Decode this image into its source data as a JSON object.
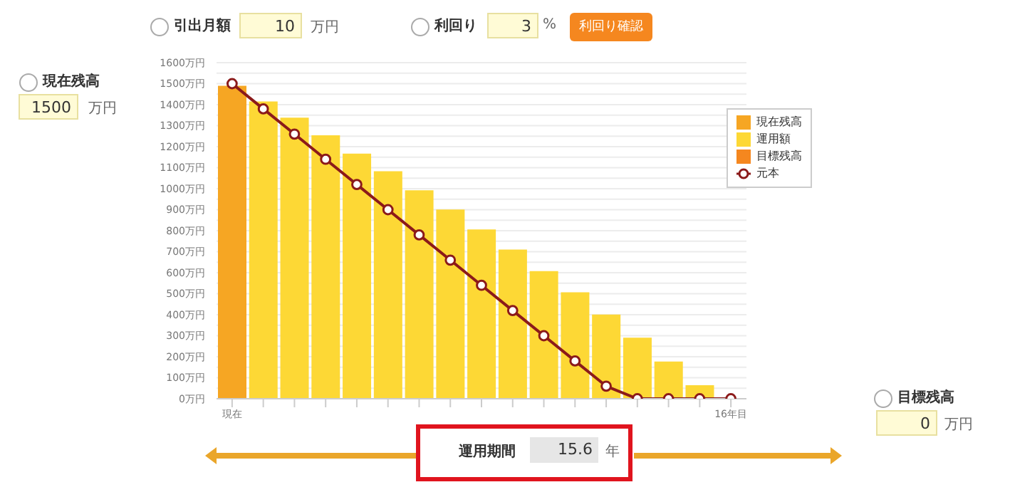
{
  "chart_data": {
    "type": "bar",
    "stacked": true,
    "categories": [
      "現在",
      null,
      null,
      null,
      null,
      null,
      null,
      null,
      null,
      null,
      null,
      null,
      null,
      null,
      null,
      null,
      "16年目"
    ],
    "series": [
      {
        "name": "現在残高",
        "color": "#f6a623",
        "values": [
          1490,
          null,
          null,
          null,
          null,
          null,
          null,
          null,
          null,
          null,
          null,
          null,
          null,
          null,
          null,
          null,
          null
        ]
      },
      {
        "name": "運用額",
        "color": "#fdd835",
        "values": [
          null,
          1415,
          1338,
          1254,
          1167,
          1083,
          992,
          901,
          806,
          710,
          608,
          507,
          401,
          291,
          177,
          64,
          null
        ]
      },
      {
        "name": "目標残高",
        "color": "#f5871f",
        "values": [
          null,
          null,
          null,
          null,
          null,
          null,
          null,
          null,
          null,
          null,
          null,
          null,
          null,
          null,
          null,
          null,
          0
        ]
      },
      {
        "name": "元本",
        "type": "line",
        "color": "#8b1a1a",
        "values": [
          1500,
          1380,
          1260,
          1140,
          1020,
          900,
          780,
          660,
          540,
          420,
          300,
          180,
          60,
          0,
          0,
          0,
          0
        ]
      }
    ],
    "ylim": [
      0,
      1600
    ],
    "yticks": [
      {
        "value": 0,
        "label": "0万円"
      },
      {
        "value": 50,
        "label": null
      },
      {
        "value": 100,
        "label": "100万円"
      },
      {
        "value": 150,
        "label": null
      },
      {
        "value": 200,
        "label": "200万円"
      },
      {
        "value": 250,
        "label": null
      },
      {
        "value": 300,
        "label": "300万円"
      },
      {
        "value": 350,
        "label": null
      },
      {
        "value": 400,
        "label": "400万円"
      },
      {
        "value": 450,
        "label": null
      },
      {
        "value": 500,
        "label": "500万円"
      },
      {
        "value": 550,
        "label": null
      },
      {
        "value": 600,
        "label": "600万円"
      },
      {
        "value": 650,
        "label": null
      },
      {
        "value": 700,
        "label": "700万円"
      },
      {
        "value": 750,
        "label": null
      },
      {
        "value": 800,
        "label": "800万円"
      },
      {
        "value": 850,
        "label": null
      },
      {
        "value": 900,
        "label": "900万円"
      },
      {
        "value": 950,
        "label": null
      },
      {
        "value": 1000,
        "label": "1000万円"
      },
      {
        "value": 1050,
        "label": null
      },
      {
        "value": 1100,
        "label": "1100万円"
      },
      {
        "value": 1150,
        "label": null
      },
      {
        "value": 1200,
        "label": "1200万円"
      },
      {
        "value": 1250,
        "label": null
      },
      {
        "value": 1300,
        "label": "1300万円"
      },
      {
        "value": 1350,
        "label": null
      },
      {
        "value": 1400,
        "label": "1400万円"
      },
      {
        "value": 1450,
        "label": null
      },
      {
        "value": 1500,
        "label": "1500万円"
      },
      {
        "value": 1550,
        "label": null
      },
      {
        "value": 1600,
        "label": "1600万円"
      }
    ],
    "grid": "y",
    "legend": "top right",
    "marker": "circle",
    "line_style": "solid",
    "annotations": [
      "引出月額",
      "10",
      "万円",
      "利回り",
      "3",
      "%",
      "利回り確認",
      "現在残高",
      "1500",
      "万円",
      "目標残高",
      "0",
      "万円",
      "運用期間",
      "15.6",
      "年"
    ]
  }
}
